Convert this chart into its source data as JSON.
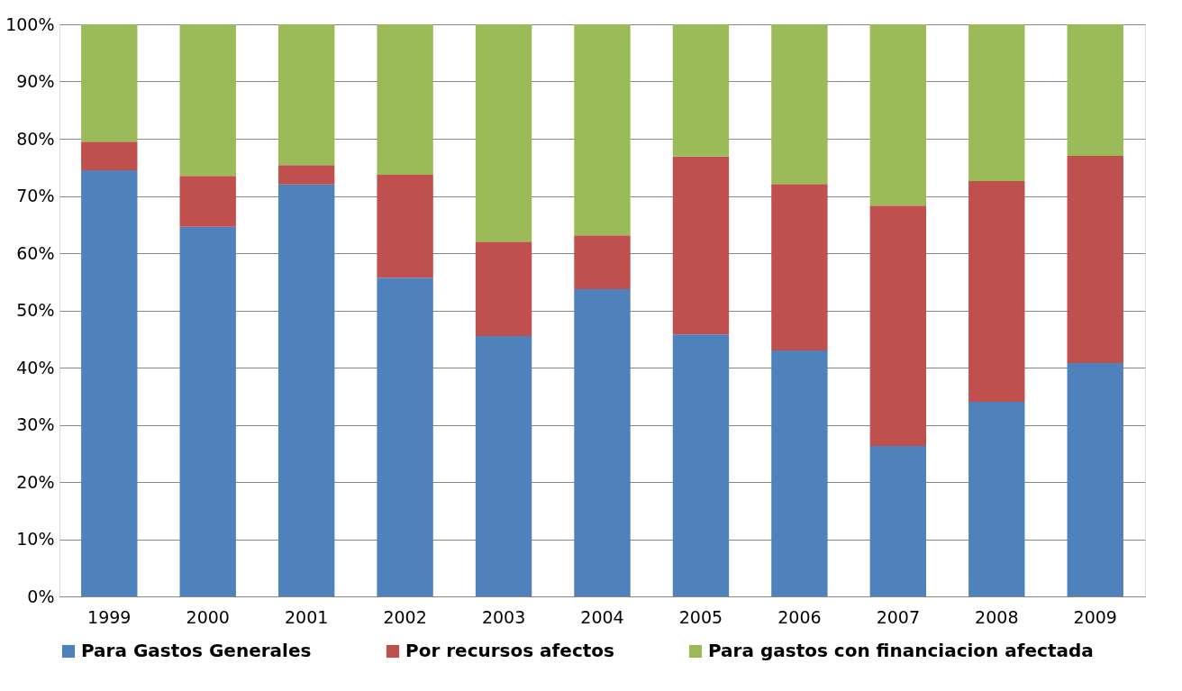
{
  "chart_data": {
    "type": "bar",
    "stacked": true,
    "categories": [
      "1999",
      "2000",
      "2001",
      "2002",
      "2003",
      "2004",
      "2005",
      "2006",
      "2007",
      "2008",
      "2009"
    ],
    "series": [
      {
        "name": "Para Gastos Generales",
        "color": "#4f81bd",
        "values": [
          74.5,
          64.6,
          72.0,
          55.7,
          45.5,
          53.7,
          45.8,
          43.0,
          26.3,
          34.0,
          40.8
        ]
      },
      {
        "name": "Por recursos afectos",
        "color": "#c0504d",
        "values": [
          5.0,
          8.9,
          3.4,
          18.0,
          16.5,
          9.4,
          31.1,
          29.1,
          42.0,
          38.6,
          36.2
        ]
      },
      {
        "name": "Para gastos con financiacion afectada",
        "color": "#9bbb59",
        "values": [
          20.5,
          26.5,
          24.6,
          26.3,
          38.0,
          36.9,
          23.1,
          27.9,
          31.7,
          27.4,
          23.0
        ]
      }
    ],
    "ylim": [
      0,
      100
    ],
    "yticks": [
      {
        "value": 0,
        "label": "0%"
      },
      {
        "value": 10,
        "label": "10%"
      },
      {
        "value": 20,
        "label": "20%"
      },
      {
        "value": 30,
        "label": "30%"
      },
      {
        "value": 40,
        "label": "40%"
      },
      {
        "value": 50,
        "label": "50%"
      },
      {
        "value": 60,
        "label": "60%"
      },
      {
        "value": 70,
        "label": "70%"
      },
      {
        "value": 80,
        "label": "80%"
      },
      {
        "value": 90,
        "label": "90%"
      },
      {
        "value": 100,
        "label": "100%"
      }
    ],
    "grid": "y",
    "legend": "bottom"
  }
}
